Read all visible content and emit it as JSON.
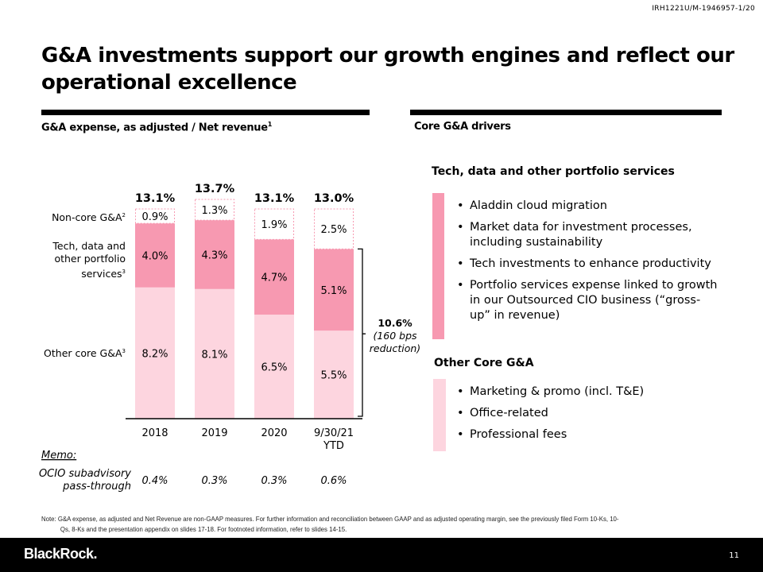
{
  "doc_id": "IRH1221U/M-1946957-1/20",
  "title": "G&A investments support our growth engines and reflect our operational excellence",
  "left_heading": "G&A expense, as adjusted / Net revenue",
  "left_heading_footnote": "1",
  "right_heading": "Core G&A drivers",
  "chart_data": {
    "type": "bar",
    "stacked": true,
    "categories": [
      "2018",
      "2019",
      "2020",
      "9/30/21 YTD"
    ],
    "category_lines": [
      [
        "2018"
      ],
      [
        "2019"
      ],
      [
        "2020"
      ],
      [
        "9/30/21",
        "YTD"
      ]
    ],
    "series": [
      {
        "name": "Other core G&A",
        "footnote": "3",
        "values": [
          8.2,
          8.1,
          6.5,
          5.5
        ],
        "labels": [
          "8.2%",
          "8.1%",
          "6.5%",
          "5.5%"
        ],
        "color": "#fdd5df"
      },
      {
        "name": "Tech, data and other portfolio services",
        "footnote": "3",
        "name_lines": [
          "Tech, data and",
          "other portfolio",
          "services"
        ],
        "values": [
          4.0,
          4.3,
          4.7,
          5.1
        ],
        "labels": [
          "4.0%",
          "4.3%",
          "4.7%",
          "5.1%"
        ],
        "color": "#f799b1"
      },
      {
        "name": "Non-core G&A",
        "footnote": "2",
        "values": [
          0.9,
          1.3,
          1.9,
          2.5
        ],
        "labels": [
          "0.9%",
          "1.3%",
          "1.9%",
          "2.5%"
        ],
        "color": "#ffffff",
        "border": "#f799b1",
        "dashed": true
      }
    ],
    "totals": [
      "13.1%",
      "13.7%",
      "13.1%",
      "13.0%"
    ],
    "total_values": [
      13.1,
      13.7,
      13.1,
      13.0
    ],
    "bracket_annotation": {
      "applies_to": "9/30/21 YTD",
      "value": "10.6%",
      "note_lines": [
        "(160 bps",
        "reduction)"
      ]
    },
    "memo": {
      "label": "Memo:",
      "row_label_lines": [
        "OCIO subadvisory",
        "pass-through"
      ],
      "values": [
        "0.4%",
        "0.3%",
        "0.3%",
        "0.6%"
      ]
    },
    "ylim": [
      0,
      14
    ],
    "grid": false,
    "legend": "left-labels"
  },
  "drivers": {
    "sections": [
      {
        "title": "Tech, data and other portfolio services",
        "color": "#f799b1",
        "bullets": [
          "Aladdin cloud migration",
          "Market data for investment processes, including sustainability",
          "Tech investments to enhance productivity",
          "Portfolio services expense linked to growth in our Outsourced CIO business (“gross-up” in revenue)"
        ]
      },
      {
        "title": "Other Core G&A",
        "color": "#fdd5df",
        "bullets": [
          "Marketing & promo (incl. T&E)",
          "Office-related",
          "Professional fees"
        ]
      }
    ]
  },
  "note_line1": "Note: G&A expense, as adjusted and Net Revenue are non-GAAP measures. For further information and reconciliation between GAAP and as adjusted operating margin, see the previously filed Form 10-Ks, 10-",
  "note_line2": "Qs, 8-Ks and the presentation appendix on slides 17-18.  For footnoted information, refer to slides 14-15.",
  "footer": {
    "logo": "BlackRock.",
    "page_number": "11"
  }
}
